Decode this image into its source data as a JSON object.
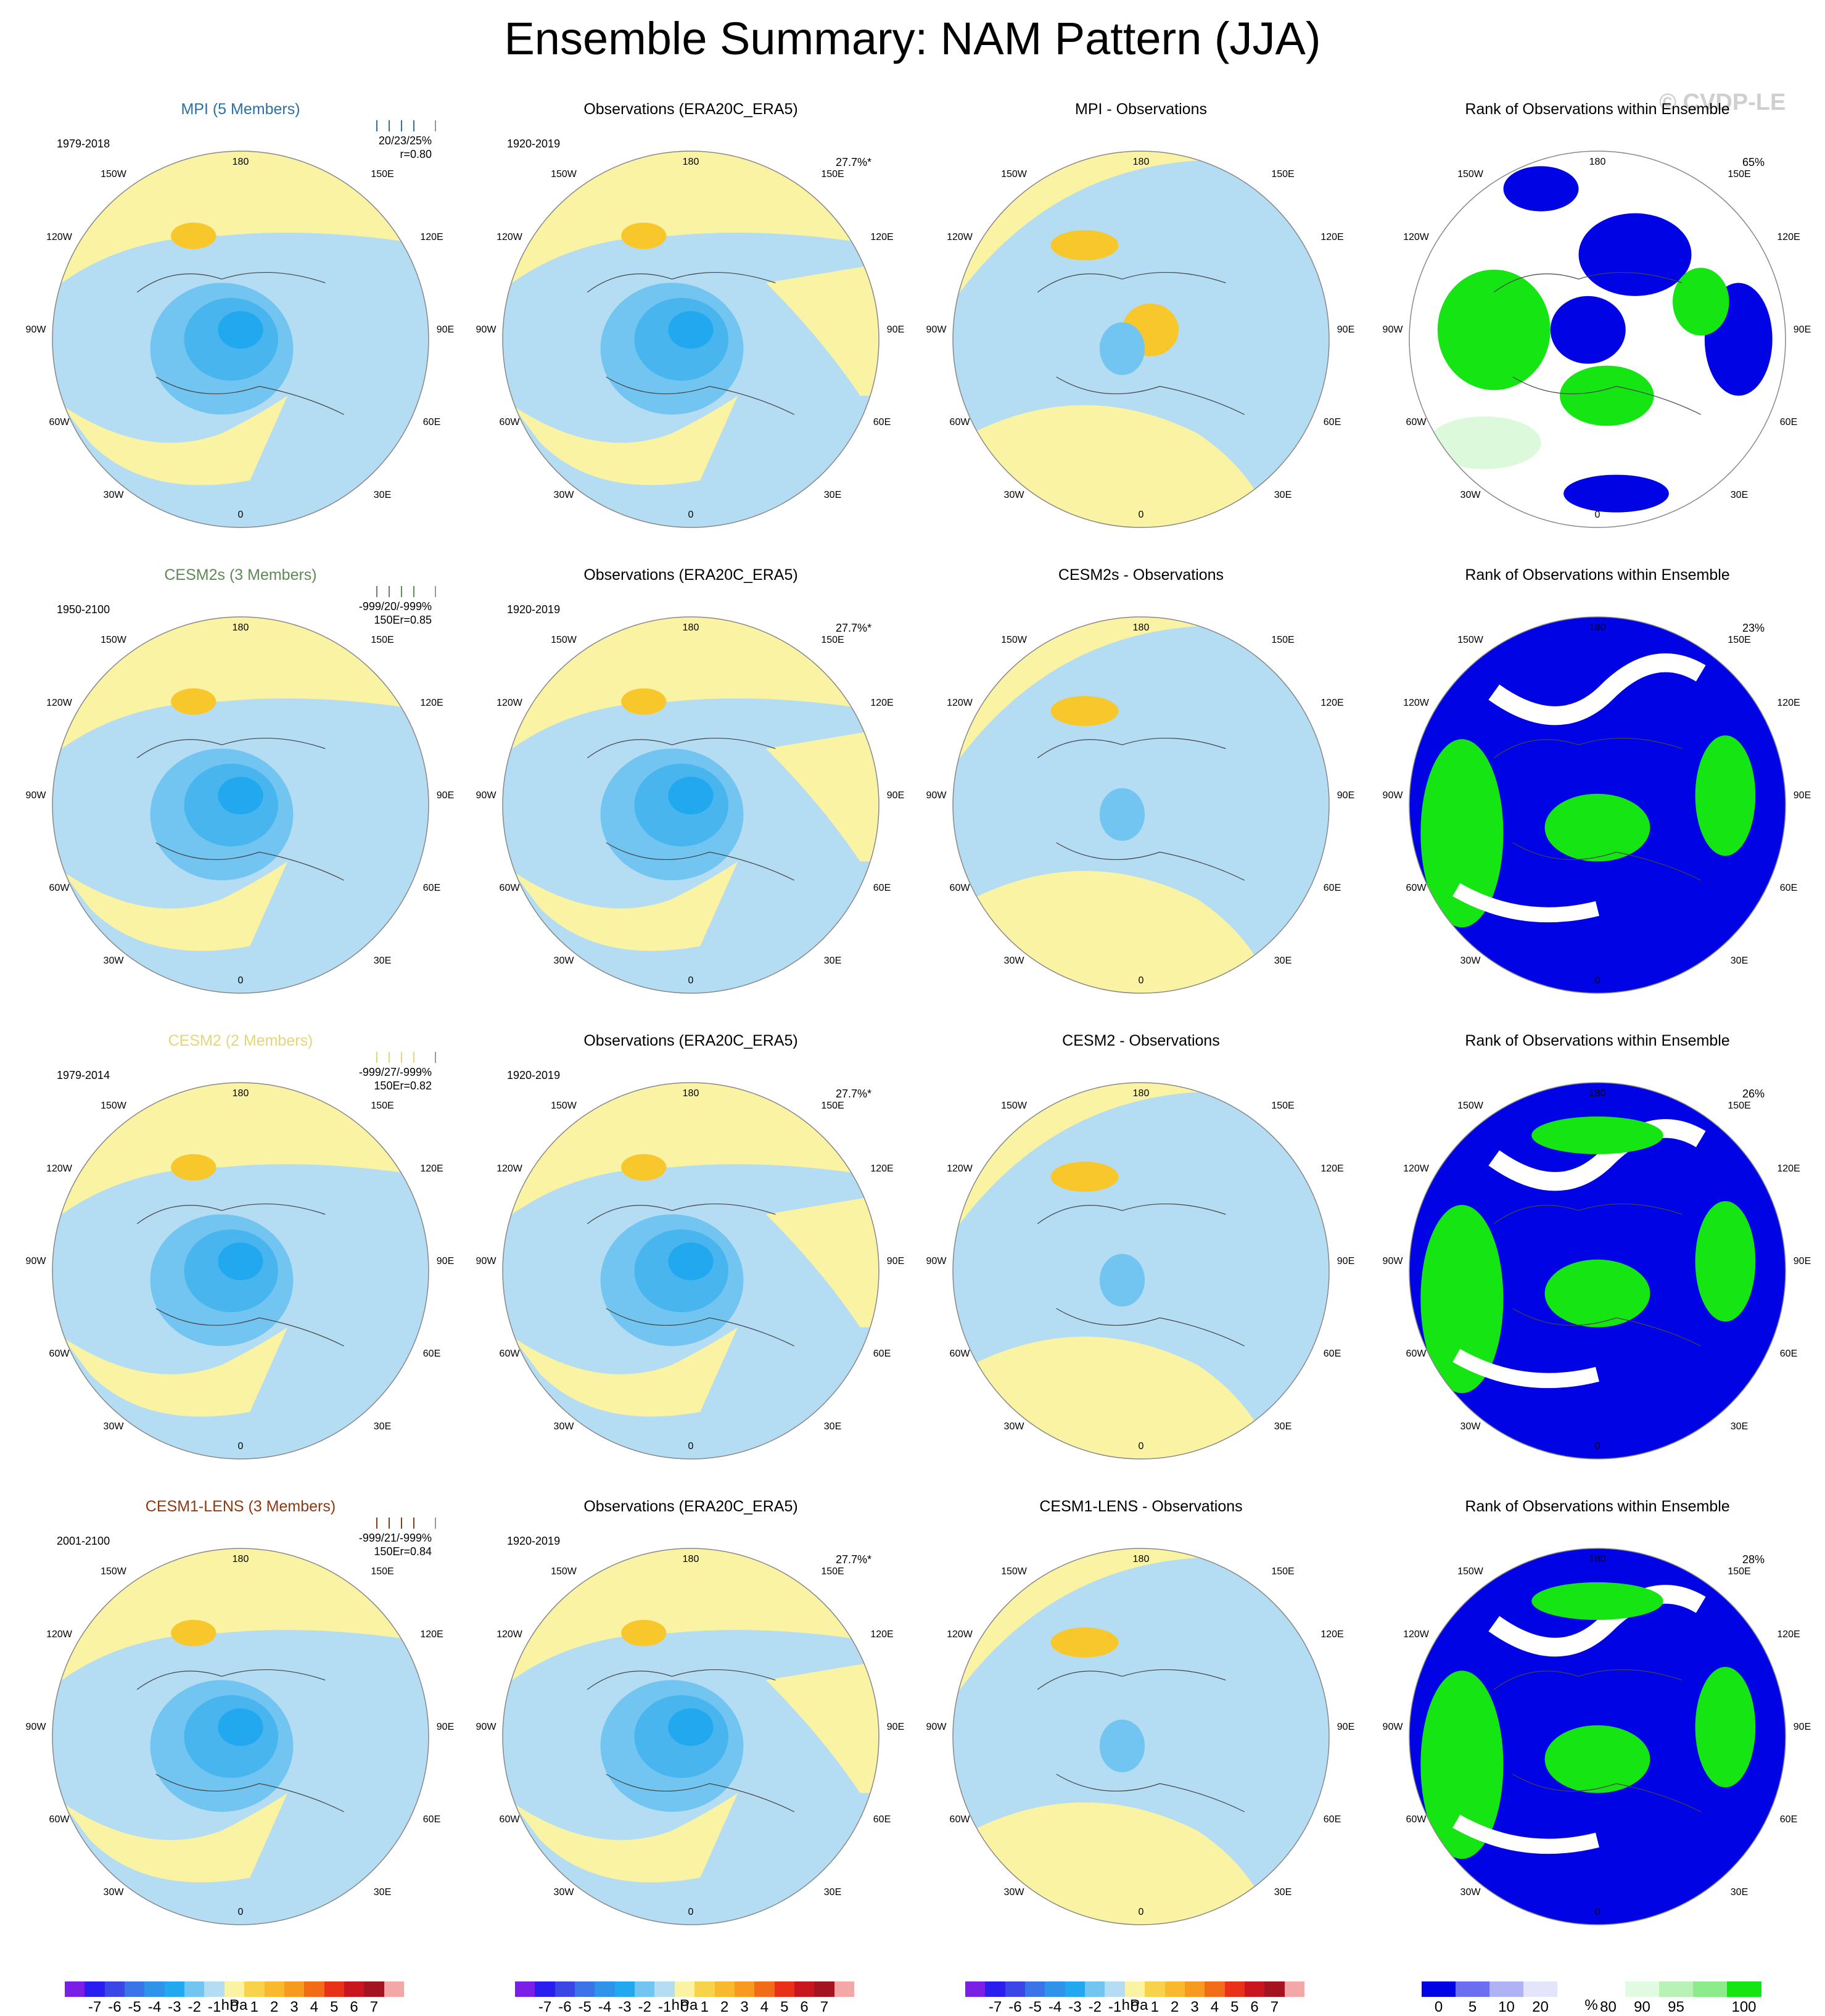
{
  "title": "Ensemble Summary: NAM Pattern (JJA)",
  "copyright": "© CVDP-LE",
  "colors": {
    "yellow": "#fbf3a4",
    "lightblue": "#b4dcf2",
    "blue1": "#72c5f0",
    "blue2": "#49b5ee",
    "blue3": "#22a8ee",
    "orange": "#f8c72c",
    "rank_blue": "#0004e5",
    "rank_green": "#16e514",
    "rank_lightgreen": "#dcf9dc"
  },
  "rows": [
    {
      "model": {
        "title": "MPI (5 Members)",
        "color": "#2e6fa0",
        "period": "1979-2018",
        "stats": "20/23/25%",
        "r": "r=0.80"
      },
      "obs": {
        "title": "Observations (ERA20C_ERA5)",
        "period": "1920-2019",
        "pct": "27.7%*"
      },
      "diff": {
        "title": "MPI - Observations"
      },
      "rank": {
        "title": "Rank of Observations within Ensemble",
        "pct": "65%"
      }
    },
    {
      "model": {
        "title": "CESM2s (3 Members)",
        "color": "#5e8a55",
        "period": "1950-2100",
        "stats": "-999/20/-999%",
        "r": "150Er=0.85"
      },
      "obs": {
        "title": "Observations (ERA20C_ERA5)",
        "period": "1920-2019",
        "pct": "27.7%*"
      },
      "diff": {
        "title": "CESM2s - Observations"
      },
      "rank": {
        "title": "Rank of Observations within Ensemble",
        "pct": "23%"
      }
    },
    {
      "model": {
        "title": "CESM2 (2 Members)",
        "color": "#e3d77a",
        "period": "1979-2014",
        "stats": "-999/27/-999%",
        "r": "150Er=0.82"
      },
      "obs": {
        "title": "Observations (ERA20C_ERA5)",
        "period": "1920-2019",
        "pct": "27.7%*"
      },
      "diff": {
        "title": "CESM2 - Observations"
      },
      "rank": {
        "title": "Rank of Observations within Ensemble",
        "pct": "26%"
      }
    },
    {
      "model": {
        "title": "CESM1-LENS (3 Members)",
        "color": "#8b3a12",
        "period": "2001-2100",
        "stats": "-999/21/-999%",
        "r": "150Er=0.84"
      },
      "obs": {
        "title": "Observations (ERA20C_ERA5)",
        "period": "1920-2019",
        "pct": "27.7%*"
      },
      "diff": {
        "title": "CESM1-LENS - Observations"
      },
      "rank": {
        "title": "Rank of Observations within Ensemble",
        "pct": "28%"
      }
    }
  ],
  "lon_labels": [
    "180",
    "150W",
    "150E",
    "120W",
    "120E",
    "90W",
    "90E",
    "60W",
    "60E",
    "30W",
    "30E",
    "0"
  ],
  "colorbar_hpa": {
    "colors": [
      "#7b1fe6",
      "#2a1df0",
      "#3a46e6",
      "#3b74e8",
      "#2f93ea",
      "#22a8ee",
      "#72c5f0",
      "#b4dcf2",
      "#fbf3a4",
      "#f8d24a",
      "#f8b92c",
      "#f79b20",
      "#f26b16",
      "#e93018",
      "#c9161e",
      "#a31420",
      "#f4a7a7"
    ],
    "ticks": [
      "-7",
      "-6",
      "-5",
      "-4",
      "-3",
      "-2",
      "-1",
      "0",
      "1",
      "2",
      "3",
      "4",
      "5",
      "6",
      "7"
    ],
    "unit": "hPa"
  },
  "colorbar_rank": {
    "colors": [
      "#0004e5",
      "#6b6ef0",
      "#b0b2f6",
      "#e4e4fb",
      "#ffffff",
      "#ffffff",
      "#e2f9e2",
      "#b8f2b6",
      "#8ceb8a",
      "#16e514"
    ],
    "ticks": [
      "0",
      "5",
      "10",
      "20",
      "80",
      "90",
      "95",
      "100"
    ],
    "unit": "%"
  }
}
